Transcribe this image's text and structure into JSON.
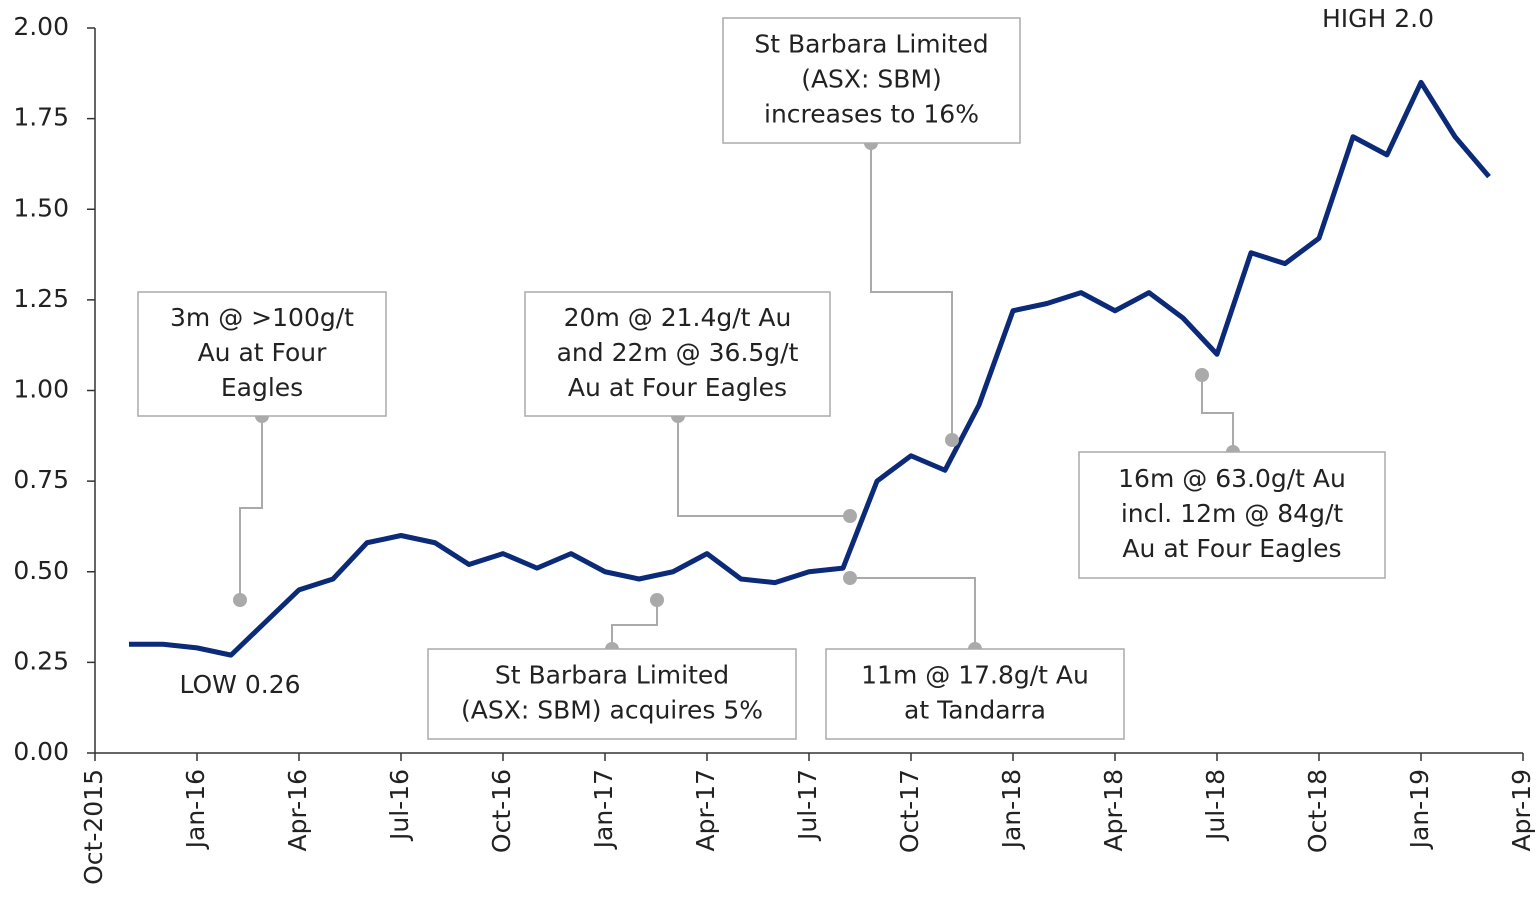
{
  "chart_data": {
    "type": "line",
    "x": [
      "2015-11",
      "2015-12",
      "2016-01",
      "2016-02",
      "2016-03",
      "2016-04",
      "2016-05",
      "2016-06",
      "2016-07",
      "2016-08",
      "2016-09",
      "2016-10",
      "2016-11",
      "2016-12",
      "2017-01",
      "2017-02",
      "2017-03",
      "2017-04",
      "2017-05",
      "2017-06",
      "2017-07",
      "2017-08",
      "2017-09",
      "2017-10",
      "2017-11",
      "2017-12",
      "2018-01",
      "2018-02",
      "2018-03",
      "2018-04",
      "2018-05",
      "2018-06",
      "2018-07",
      "2018-08",
      "2018-09",
      "2018-10",
      "2018-11",
      "2018-12",
      "2019-01",
      "2019-02",
      "2019-03"
    ],
    "series": [
      {
        "name": null,
        "color": "#0b2a78",
        "values": [
          0.3,
          0.3,
          0.29,
          0.27,
          0.36,
          0.45,
          0.48,
          0.58,
          0.6,
          0.58,
          0.52,
          0.55,
          0.51,
          0.55,
          0.5,
          0.48,
          0.5,
          0.55,
          0.48,
          0.47,
          0.5,
          0.51,
          0.75,
          0.82,
          0.78,
          0.96,
          1.22,
          1.24,
          1.27,
          1.22,
          1.27,
          1.2,
          1.1,
          1.38,
          1.35,
          1.42,
          1.7,
          1.65,
          1.85,
          1.7,
          1.59
        ]
      }
    ],
    "xlim": [
      "2015-10",
      "2019-04"
    ],
    "xticks": [
      {
        "value": "2015-10",
        "label": "Oct-2015"
      },
      {
        "value": "2016-01",
        "label": "Jan-16"
      },
      {
        "value": "2016-04",
        "label": "Apr-16"
      },
      {
        "value": "2016-07",
        "label": "Jul-16"
      },
      {
        "value": "2016-10",
        "label": "Oct-16"
      },
      {
        "value": "2017-01",
        "label": "Jan-17"
      },
      {
        "value": "2017-04",
        "label": "Apr-17"
      },
      {
        "value": "2017-07",
        "label": "Jul-17"
      },
      {
        "value": "2017-10",
        "label": "Oct-17"
      },
      {
        "value": "2018-01",
        "label": "Jan-18"
      },
      {
        "value": "2018-04",
        "label": "Apr-18"
      },
      {
        "value": "2018-07",
        "label": "Jul-18"
      },
      {
        "value": "2018-10",
        "label": "Oct-18"
      },
      {
        "value": "2019-01",
        "label": "Jan-19"
      },
      {
        "value": "2019-04",
        "label": "Apr-19"
      }
    ],
    "ylim": [
      0,
      2
    ],
    "yticks": [
      {
        "value": 0,
        "label": "0.00"
      },
      {
        "value": 0.25,
        "label": "0.25"
      },
      {
        "value": 0.5,
        "label": "0.50"
      },
      {
        "value": 0.75,
        "label": "0.75"
      },
      {
        "value": 1,
        "label": "1.00"
      },
      {
        "value": 1.25,
        "label": "1.25"
      },
      {
        "value": 1.5,
        "label": "1.50"
      },
      {
        "value": 1.75,
        "label": "1.75"
      },
      {
        "value": 2,
        "label": "2.00"
      }
    ],
    "annotations": [
      {
        "lines": [
          "3m @ >100g/t",
          "Au at Four",
          "Eagles"
        ]
      },
      {
        "lines": [
          "20m @ 21.4g/t Au",
          "and 22m @ 36.5g/t",
          "Au at Four Eagles"
        ]
      },
      {
        "lines": [
          "St Barbara Limited",
          "(ASX: SBM)",
          "increases to 16%"
        ]
      },
      {
        "lines": [
          "16m @ 63.0g/t Au",
          "incl. 12m @ 84g/t",
          "Au at Four Eagles"
        ]
      },
      {
        "lines": [
          "St Barbara Limited",
          "(ASX: SBM) acquires 5%"
        ]
      },
      {
        "lines": [
          "11m @ 17.8g/t Au",
          "at Tandarra"
        ]
      }
    ],
    "low_label": "LOW 0.26",
    "high_label": "HIGH 2.0"
  }
}
